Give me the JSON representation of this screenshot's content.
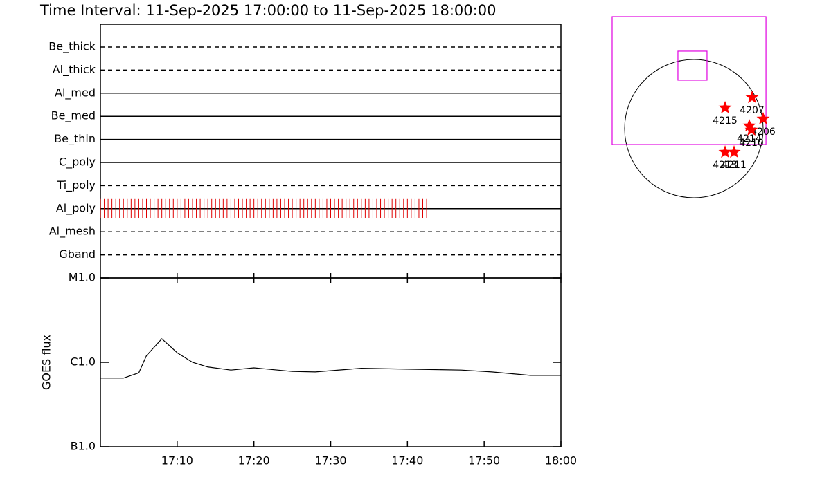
{
  "title": "Time Interval: 11-Sep-2025 17:00:00 to 11-Sep-2025 18:00:00",
  "chart_data": [
    {
      "type": "timeline",
      "categories": [
        "Be_thick",
        "Al_thick",
        "Al_med",
        "Be_med",
        "Be_thin",
        "C_poly",
        "Ti_poly",
        "Al_poly",
        "Al_mesh",
        "Gband"
      ],
      "styles": [
        "dashed",
        "dashed",
        "solid",
        "solid",
        "solid",
        "solid",
        "dashed",
        "solid",
        "dashed",
        "dashed"
      ],
      "events": {
        "row": 7,
        "color": "#e00000",
        "x": [
          0,
          0.5,
          1,
          1.5,
          2,
          2.5,
          3,
          3.5,
          4,
          4.5,
          5,
          5.5,
          6,
          6.5,
          7,
          7.5,
          8,
          8.5,
          9,
          9.5,
          10,
          10.5,
          11,
          11.5,
          12,
          12.5,
          13,
          13.5,
          14,
          14.5,
          15,
          15.5,
          16,
          16.5,
          17,
          17.5,
          18,
          18.5,
          19,
          19.5,
          20,
          20.5,
          21,
          21.5,
          22,
          22.5,
          23,
          23.5,
          24,
          24.5,
          25,
          25.5,
          26,
          26.5,
          27,
          27.5,
          28,
          28.5,
          29,
          29.5,
          30,
          30.5,
          31,
          31.5,
          32,
          32.5,
          33,
          33.5,
          34,
          34.5,
          35,
          35.5,
          36,
          36.5,
          37,
          37.5,
          38,
          38.5,
          39,
          39.5,
          40,
          40.5,
          41,
          41.5,
          42,
          42.5
        ]
      }
    },
    {
      "type": "line",
      "ylabel": "GOES flux",
      "log": true,
      "color": "#000000",
      "x": [
        0,
        3,
        5,
        6,
        8,
        10,
        12,
        14,
        17,
        20,
        25,
        28,
        34,
        40,
        47,
        51,
        56,
        60
      ],
      "values": [
        6.5e-07,
        6.5e-07,
        7.5e-07,
        1.2e-06,
        1.9e-06,
        1.3e-06,
        1e-06,
        8.8e-07,
        8.1e-07,
        8.6e-07,
        7.8e-07,
        7.7e-07,
        8.5e-07,
        8.3e-07,
        8.1e-07,
        7.7e-07,
        7e-07,
        7e-07
      ],
      "xlim": [
        0,
        60
      ],
      "xticks": [
        {
          "value": 10,
          "label": "17:10"
        },
        {
          "value": 20,
          "label": "17:20"
        },
        {
          "value": 30,
          "label": "17:30"
        },
        {
          "value": 40,
          "label": "17:40"
        },
        {
          "value": 50,
          "label": "17:50"
        },
        {
          "value": 60,
          "label": "18:00"
        }
      ],
      "ylim": [
        1e-07,
        1e-05
      ],
      "yticks": [
        {
          "value": 1e-07,
          "label": "B1.0"
        },
        {
          "value": 1e-06,
          "label": "C1.0"
        },
        {
          "value": 1e-05,
          "label": "M1.0"
        }
      ]
    },
    {
      "type": "map",
      "disk_radius": 955,
      "fov_color": "#e000e0",
      "star_color": "#ff0000",
      "fov": {
        "x": [
          -1127,
          994
        ],
        "y": [
          -220,
          1547
        ]
      },
      "box": {
        "x": [
          -220,
          181
        ],
        "y": [
          669,
          1070
        ]
      },
      "points": [
        {
          "label": "4207",
          "x": 802,
          "y": 430
        },
        {
          "label": "4215",
          "x": 430,
          "y": 287
        },
        {
          "label": "4206",
          "x": 955,
          "y": 134
        },
        {
          "label": "4214",
          "x": 764,
          "y": 38
        },
        {
          "label": "4210",
          "x": 793,
          "y": -19
        },
        {
          "label": "4213",
          "x": 430,
          "y": -325
        },
        {
          "label": "4211",
          "x": 554,
          "y": -325
        }
      ]
    }
  ]
}
